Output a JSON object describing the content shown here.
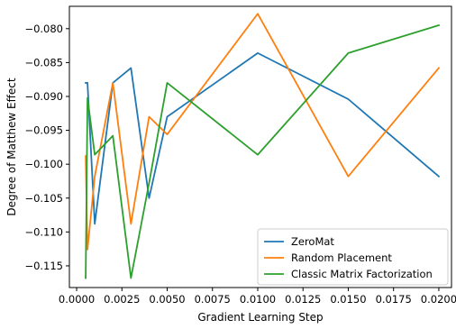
{
  "chart_data": {
    "type": "line",
    "title": "",
    "xlabel": "Gradient Learning Step",
    "ylabel": "Degree of Matthew Effect",
    "xlim": [
      -0.0004,
      0.0207
    ],
    "ylim": [
      -0.1182,
      -0.0767
    ],
    "grid": false,
    "legend_position": "bottom-right",
    "x_ticks": [
      0.0,
      0.0025,
      0.005,
      0.0075,
      0.01,
      0.0125,
      0.015,
      0.0175,
      0.02
    ],
    "x_tick_labels": [
      "0.0000",
      "0.0025",
      "0.0050",
      "0.0075",
      "0.0100",
      "0.0125",
      "0.0150",
      "0.0175",
      "0.0200"
    ],
    "y_ticks": [
      -0.115,
      -0.11,
      -0.105,
      -0.1,
      -0.095,
      -0.09,
      -0.085,
      -0.08
    ],
    "y_tick_labels": [
      "−0.115",
      "−0.110",
      "−0.105",
      "−0.100",
      "−0.095",
      "−0.090",
      "−0.085",
      "−0.080"
    ],
    "x": [
      0.0005,
      0.0006,
      0.001,
      0.002,
      0.003,
      0.004,
      0.005,
      0.01,
      0.015,
      0.02
    ],
    "series": [
      {
        "name": "ZeroMat",
        "color": "#1f77b4",
        "values": [
          -0.088,
          -0.088,
          -0.1088,
          -0.088,
          -0.0858,
          -0.105,
          -0.093,
          -0.0836,
          -0.0904,
          -0.1018
        ]
      },
      {
        "name": "Random Placement",
        "color": "#ff7f0e",
        "values": [
          -0.0988,
          -0.1126,
          -0.1018,
          -0.088,
          -0.1088,
          -0.093,
          -0.0956,
          -0.0778,
          -0.1018,
          -0.0858
        ]
      },
      {
        "name": "Classic Matrix Factorization",
        "color": "#2ca02c",
        "values": [
          -0.1168,
          -0.0902,
          -0.0986,
          -0.0958,
          -0.1168,
          -0.1028,
          -0.088,
          -0.0986,
          -0.0836,
          -0.0795
        ]
      }
    ]
  }
}
